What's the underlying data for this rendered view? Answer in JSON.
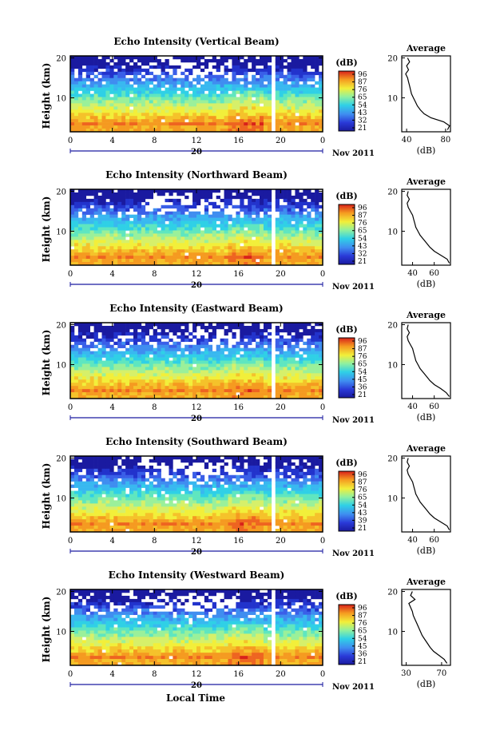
{
  "figure": {
    "xlabel": "Local Time",
    "date_label": "Nov 2011",
    "day_label": "20",
    "y_axis_label": "Height (km)",
    "cbar_unit": "(dB)",
    "avg_title": "Average",
    "avg_xlabel": "(dB)"
  },
  "chart_data": [
    {
      "type": "heatmap",
      "title": "Echo Intensity (Vertical Beam)",
      "ylabel": "Height (km)",
      "xticks": [
        "0",
        "4",
        "8",
        "12",
        "16",
        "20",
        "0"
      ],
      "xlim_hours": [
        0,
        24
      ],
      "ylim_km": [
        1.5,
        20.5
      ],
      "yticks": [
        "20",
        "10"
      ],
      "colorbar_ticks": [
        "96",
        "87",
        "76",
        "65",
        "54",
        "43",
        "32",
        "21"
      ],
      "data_gap_hours": [
        19.0,
        19.6
      ],
      "avg_profile": {
        "xticks": [
          "40",
          "80"
        ],
        "xlim": [
          35,
          85
        ],
        "heights_km": [
          2,
          3,
          4,
          5,
          6,
          7,
          8,
          9,
          10,
          11,
          12,
          13,
          14,
          15,
          16,
          17,
          18,
          19,
          20
        ],
        "values_db": [
          82,
          84,
          78,
          65,
          58,
          54,
          51,
          49,
          47,
          45,
          44,
          43,
          42,
          41,
          39,
          42,
          40,
          43,
          41
        ]
      }
    },
    {
      "type": "heatmap",
      "title": "Echo Intensity (Northward Beam)",
      "ylabel": "Height (km)",
      "xticks": [
        "0",
        "4",
        "8",
        "12",
        "16",
        "20",
        "0"
      ],
      "xlim_hours": [
        0,
        24
      ],
      "ylim_km": [
        1.5,
        20.5
      ],
      "yticks": [
        "20",
        "10"
      ],
      "colorbar_ticks": [
        "96",
        "87",
        "76",
        "65",
        "54",
        "43",
        "32",
        "21"
      ],
      "data_gap_hours": [
        19.0,
        19.6
      ],
      "avg_profile": {
        "xticks": [
          "40",
          "60"
        ],
        "xlim": [
          30,
          75
        ],
        "heights_km": [
          2,
          3,
          4,
          5,
          6,
          7,
          8,
          9,
          10,
          11,
          12,
          13,
          14,
          15,
          16,
          17,
          18,
          19,
          20
        ],
        "values_db": [
          74,
          72,
          66,
          60,
          56,
          53,
          50,
          47,
          45,
          43,
          42,
          41,
          40,
          38,
          36,
          35,
          37,
          35,
          36
        ]
      }
    },
    {
      "type": "heatmap",
      "title": "Echo Intensity (Eastward Beam)",
      "ylabel": "Height (km)",
      "xticks": [
        "0",
        "4",
        "8",
        "12",
        "16",
        "20",
        "0"
      ],
      "xlim_hours": [
        0,
        24
      ],
      "ylim_km": [
        1.5,
        20.5
      ],
      "yticks": [
        "20",
        "10"
      ],
      "colorbar_ticks": [
        "96",
        "87",
        "76",
        "65",
        "54",
        "45",
        "36",
        "21"
      ],
      "data_gap_hours": [
        19.0,
        19.6
      ],
      "avg_profile": {
        "xticks": [
          "40",
          "60"
        ],
        "xlim": [
          30,
          75
        ],
        "heights_km": [
          2,
          3,
          4,
          5,
          6,
          7,
          8,
          9,
          10,
          11,
          12,
          13,
          14,
          15,
          16,
          17,
          18,
          19,
          20
        ],
        "values_db": [
          74,
          71,
          66,
          60,
          56,
          53,
          50,
          47,
          45,
          43,
          42,
          41,
          40,
          38,
          36,
          35,
          37,
          35,
          36
        ]
      }
    },
    {
      "type": "heatmap",
      "title": "Echo Intensity (Southward Beam)",
      "ylabel": "Height (km)",
      "xticks": [
        "0",
        "4",
        "8",
        "12",
        "16",
        "20",
        "0"
      ],
      "xlim_hours": [
        0,
        24
      ],
      "ylim_km": [
        1.5,
        20.5
      ],
      "yticks": [
        "20",
        "10"
      ],
      "colorbar_ticks": [
        "96",
        "87",
        "76",
        "65",
        "54",
        "43",
        "39",
        "21"
      ],
      "data_gap_hours": [
        19.0,
        19.6
      ],
      "avg_profile": {
        "xticks": [
          "40",
          "60"
        ],
        "xlim": [
          30,
          75
        ],
        "heights_km": [
          2,
          3,
          4,
          5,
          6,
          7,
          8,
          9,
          10,
          11,
          12,
          13,
          14,
          15,
          16,
          17,
          18,
          19,
          20
        ],
        "values_db": [
          74,
          72,
          66,
          60,
          56,
          53,
          50,
          47,
          45,
          43,
          42,
          41,
          40,
          38,
          36,
          35,
          37,
          35,
          36
        ]
      }
    },
    {
      "type": "heatmap",
      "title": "Echo Intensity (Westward Beam)",
      "ylabel": "Height (km)",
      "xticks": [
        "0",
        "4",
        "8",
        "12",
        "16",
        "20",
        "0"
      ],
      "xlim_hours": [
        0,
        24
      ],
      "ylim_km": [
        1.5,
        20.5
      ],
      "yticks": [
        "20",
        "10"
      ],
      "colorbar_ticks": [
        "96",
        "87",
        "76",
        "65",
        "54",
        "45",
        "36",
        "21"
      ],
      "data_gap_hours": [
        19.0,
        19.6
      ],
      "avg_profile": {
        "xticks": [
          "30",
          "70"
        ],
        "xlim": [
          25,
          80
        ],
        "heights_km": [
          2,
          3,
          4,
          5,
          6,
          7,
          8,
          9,
          10,
          11,
          12,
          13,
          14,
          15,
          16,
          17,
          18,
          19,
          20
        ],
        "values_db": [
          76,
          73,
          67,
          61,
          57,
          54,
          51,
          48,
          46,
          44,
          42,
          40,
          38,
          37,
          35,
          33,
          40,
          35,
          37
        ]
      }
    }
  ]
}
